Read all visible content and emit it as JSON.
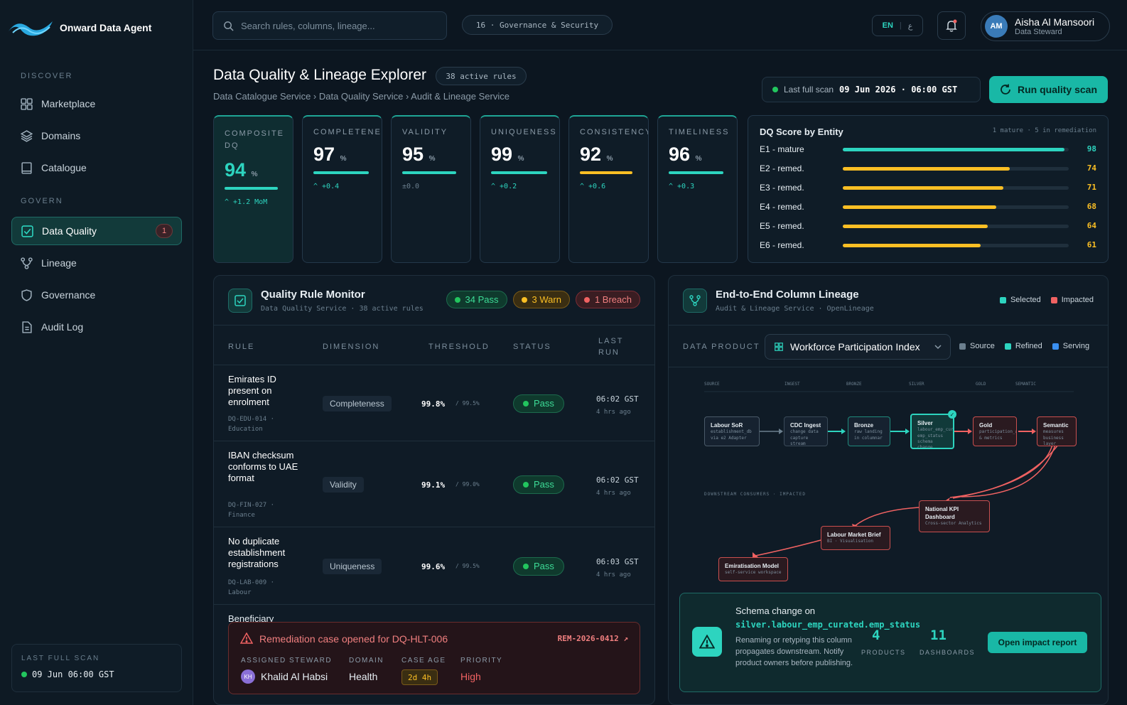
{
  "app": {
    "name": "Onward Data Agent"
  },
  "sidebar": {
    "sections": [
      {
        "label": "DISCOVER"
      },
      {
        "label": "GOVERN"
      }
    ],
    "items": [
      {
        "label": "Marketplace",
        "icon": "grid-icon"
      },
      {
        "label": "Domains",
        "icon": "layers-icon"
      },
      {
        "label": "Catalogue",
        "icon": "book-icon"
      },
      {
        "label": "Data Quality",
        "icon": "check-square-icon",
        "badge": "1",
        "active": true
      },
      {
        "label": "Lineage",
        "icon": "lineage-icon"
      },
      {
        "label": "Governance",
        "icon": "shield-icon"
      },
      {
        "label": "Audit Log",
        "icon": "file-icon"
      }
    ],
    "last_scan": {
      "label": "LAST FULL SCAN",
      "value": "09 Jun 06:00 GST"
    }
  },
  "topbar": {
    "search_placeholder": "Search rules, columns, lineage...",
    "context": "16 · Governance & Security",
    "lang_en": "EN",
    "lang_ar": "ع",
    "user": {
      "initials": "AM",
      "name": "Aisha Al Mansoori",
      "role": "Data Steward"
    }
  },
  "page": {
    "title": "Data Quality & Lineage Explorer",
    "active_rules": "38 active rules",
    "breadcrumb": "Data Catalogue Service › Data Quality Service › Audit & Lineage Service",
    "last_scan_label": "Last full scan",
    "last_scan_value": "09 Jun 2026 · 06:00 GST",
    "run_label": "Run quality scan"
  },
  "kpis": [
    {
      "name": "COMPOSITE DQ",
      "value": "94",
      "unit": "%",
      "delta": "^ +1.2 MoM",
      "color": "#2dd4bf",
      "fill": 0.94
    },
    {
      "name": "COMPLETENESS",
      "value": "97",
      "unit": "%",
      "delta": "^ +0.4",
      "color": "#2dd4bf",
      "fill": 0.97
    },
    {
      "name": "VALIDITY",
      "value": "95",
      "unit": "%",
      "delta": "±0.0",
      "color": "#2dd4bf",
      "fill": 0.95
    },
    {
      "name": "UNIQUENESS",
      "value": "99",
      "unit": "%",
      "delta": "^ +0.2",
      "color": "#2dd4bf",
      "fill": 0.99
    },
    {
      "name": "CONSISTENCY",
      "value": "92",
      "unit": "%",
      "delta": "^ +0.6",
      "color": "#fbbf24",
      "fill": 0.92
    },
    {
      "name": "TIMELINESS",
      "value": "96",
      "unit": "%",
      "delta": "^ +0.3",
      "color": "#2dd4bf",
      "fill": 0.96
    }
  ],
  "entity_scores": {
    "title": "DQ Score by Entity",
    "subtitle": "1 mature · 5 in remediation",
    "rows": [
      {
        "label": "E1 - mature",
        "value": 98,
        "color": "#2dd4bf"
      },
      {
        "label": "E2 - remed.",
        "value": 74,
        "color": "#fbbf24"
      },
      {
        "label": "E3 - remed.",
        "value": 71,
        "color": "#fbbf24"
      },
      {
        "label": "E4 - remed.",
        "value": 68,
        "color": "#fbbf24"
      },
      {
        "label": "E5 - remed.",
        "value": 64,
        "color": "#fbbf24"
      },
      {
        "label": "E6 - remed.",
        "value": 61,
        "color": "#fbbf24"
      }
    ]
  },
  "monitor": {
    "title": "Quality Rule Monitor",
    "subtitle": "Data Quality Service · 38 active rules",
    "pass": "34 Pass",
    "warn": "3 Warn",
    "breach": "1 Breach",
    "columns": {
      "rule": "RULE",
      "dimension": "DIMENSION",
      "threshold": "THRESHOLD",
      "status": "STATUS",
      "last_run": "LAST RUN"
    },
    "rows": [
      {
        "name": "Emirates ID present on enrolment",
        "id": "DQ-EDU-014 · Education",
        "dimension": "Completeness",
        "value": "99.8%",
        "threshold": "/ 99.5%",
        "status": "Pass",
        "time": "06:02 GST",
        "ago": "4 hrs ago"
      },
      {
        "name": "IBAN checksum conforms to UAE format",
        "id": "DQ-FIN-027 · Finance",
        "dimension": "Validity",
        "value": "99.1%",
        "threshold": "/ 99.0%",
        "status": "Pass",
        "time": "06:02 GST",
        "ago": "4 hrs ago"
      },
      {
        "name": "No duplicate establishment registrations",
        "id": "DQ-LAB-009 · Labour",
        "dimension": "Uniqueness",
        "value": "99.6%",
        "threshold": "/ 99.5%",
        "status": "Pass",
        "time": "06:03 GST",
        "ago": "4 hrs ago"
      }
    ],
    "partial_row": "Beneficiary",
    "remediation": {
      "title": "Remediation case opened for DQ-HLT-006",
      "case_id": "REM-2026-0412 ↗",
      "labels": {
        "steward": "ASSIGNED STEWARD",
        "domain": "DOMAIN",
        "age": "CASE AGE",
        "priority": "PRIORITY"
      },
      "steward_initials": "KH",
      "steward": "Khalid Al Habsi",
      "domain": "Health",
      "age": "2d 4h",
      "priority": "High"
    }
  },
  "lineage": {
    "title": "End-to-End Column Lineage",
    "subtitle": "Audit & Lineage Service · OpenLineage",
    "legend_selected": "Selected",
    "legend_impacted": "Impacted",
    "data_product_label": "DATA PRODUCT",
    "data_product": "Workforce Participation Index",
    "legend_source": "Source",
    "legend_refined": "Refined",
    "legend_serving": "Serving",
    "stages": [
      "SOURCE",
      "INGEST",
      "BRONZE",
      "SILVER",
      "GOLD",
      "SEMANTIC"
    ],
    "nodes": [
      {
        "title": "Labour SoR",
        "sub": "establishment_db via e2 Adapter"
      },
      {
        "title": "CDC Ingest",
        "sub": "change data capture stream"
      },
      {
        "title": "Bronze",
        "sub": "raw landing in columnar"
      },
      {
        "title": "Silver",
        "sub": "labour_emp_curated emp_status schema change"
      },
      {
        "title": "Gold",
        "sub": "participation_agg & metrics"
      },
      {
        "title": "Semantic",
        "sub": "measures business layer"
      }
    ],
    "downstream_label": "DOWNSTREAM CONSUMERS · IMPACTED",
    "consumers": [
      {
        "title": "National KPI Dashboard",
        "sub": "Cross-sector Analytics"
      },
      {
        "title": "Labour Market Brief",
        "sub": "BI · Visualisation"
      },
      {
        "title": "Emiratisation Model",
        "sub": "self-service workspace"
      }
    ],
    "schema": {
      "title": "Schema change on",
      "column": "silver.labour_emp_curated.emp_status",
      "desc": "Renaming or retyping this column propagates downstream. Notify product owners before publishing.",
      "products": "4",
      "products_label": "PRODUCTS",
      "dashboards": "11",
      "dashboards_label": "DASHBOARDS",
      "button": "Open impact report"
    }
  }
}
